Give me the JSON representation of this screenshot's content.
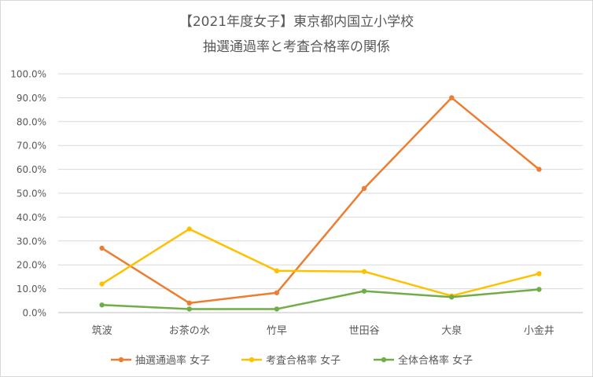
{
  "chart_data": {
    "type": "line",
    "title": [
      "【2021年度女子】東京都内国立小学校",
      "抽選通過率と考査合格率の関係"
    ],
    "xlabel": "",
    "ylabel": "",
    "categories": [
      "筑波",
      "お茶の水",
      "竹早",
      "世田谷",
      "大泉",
      "小金井"
    ],
    "ylim": [
      0,
      1
    ],
    "yticks": [
      "0.0%",
      "10.0%",
      "20.0%",
      "30.0%",
      "40.0%",
      "50.0%",
      "60.0%",
      "70.0%",
      "80.0%",
      "90.0%",
      "100.0%"
    ],
    "grid": true,
    "legend_position": "bottom",
    "series": [
      {
        "name": "抽選通過率 女子",
        "color": "#ED7D31",
        "values": [
          0.27,
          0.04,
          0.083,
          0.52,
          0.9,
          0.6
        ]
      },
      {
        "name": "考査合格率 女子",
        "color": "#FFC000",
        "values": [
          0.12,
          0.35,
          0.175,
          0.172,
          0.07,
          0.163
        ]
      },
      {
        "name": "全体合格率 女子",
        "color": "#70AD47",
        "values": [
          0.032,
          0.015,
          0.015,
          0.09,
          0.065,
          0.097
        ]
      }
    ]
  }
}
